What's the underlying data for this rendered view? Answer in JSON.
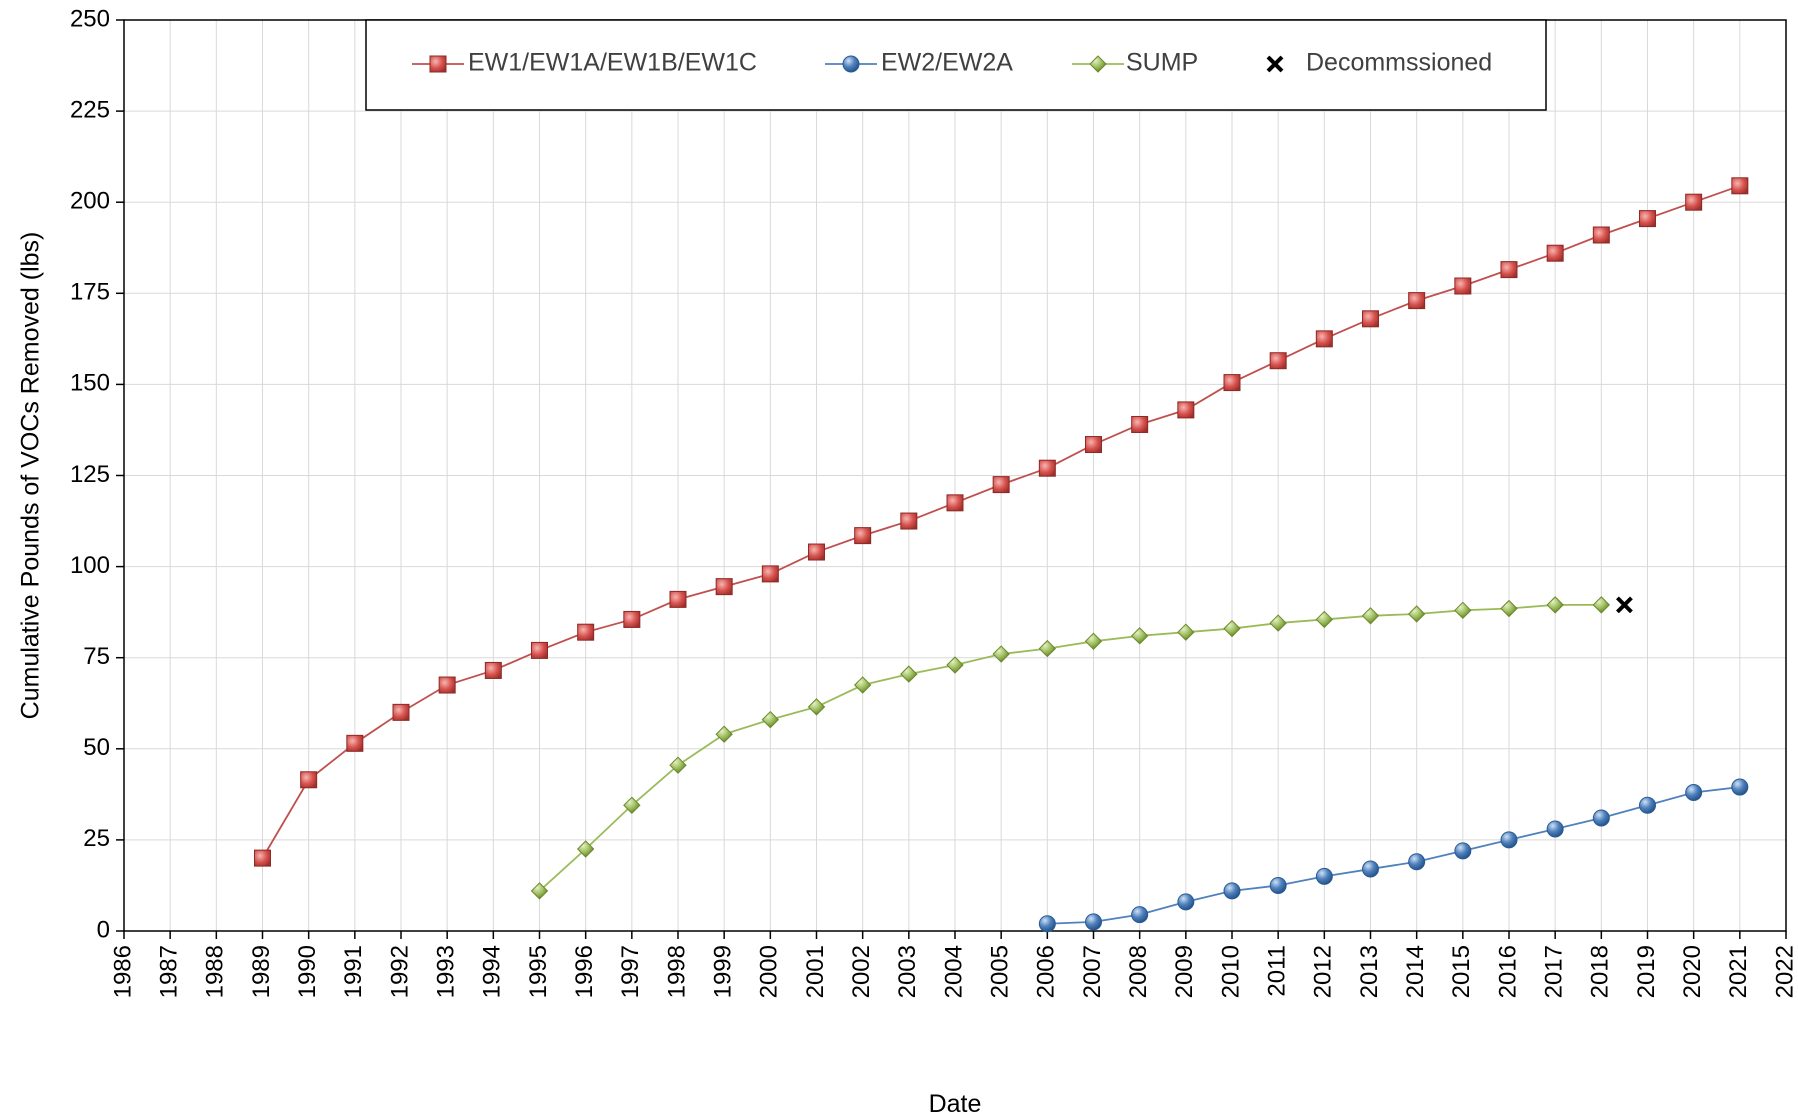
{
  "chart_data": {
    "type": "line",
    "xlabel": "Date",
    "ylabel": "Cumulative Pounds of VOCs Removed (lbs)",
    "xlim": [
      1986,
      2022
    ],
    "ylim": [
      0,
      250
    ],
    "x_ticks": [
      1986,
      1987,
      1988,
      1989,
      1990,
      1991,
      1992,
      1993,
      1994,
      1995,
      1996,
      1997,
      1998,
      1999,
      2000,
      2001,
      2002,
      2003,
      2004,
      2005,
      2006,
      2007,
      2008,
      2009,
      2010,
      2011,
      2012,
      2013,
      2014,
      2015,
      2016,
      2017,
      2018,
      2019,
      2020,
      2021,
      2022
    ],
    "y_ticks": [
      0,
      25,
      50,
      75,
      100,
      125,
      150,
      175,
      200,
      225,
      250
    ],
    "grid": true,
    "legend_position": "top",
    "series": [
      {
        "name": "EW1/EW1A/EW1B/EW1C",
        "marker": "square",
        "color": "#c0504d",
        "fill": "#d9534f",
        "x": [
          1989,
          1990,
          1991,
          1992,
          1993,
          1994,
          1995,
          1996,
          1997,
          1998,
          1999,
          2000,
          2001,
          2002,
          2003,
          2004,
          2005,
          2006,
          2007,
          2008,
          2009,
          2010,
          2011,
          2012,
          2013,
          2014,
          2015,
          2016,
          2017,
          2018,
          2019,
          2020,
          2021
        ],
        "y": [
          20,
          41.5,
          51.5,
          60,
          67.5,
          71.5,
          77,
          82,
          85.5,
          91,
          94.5,
          98,
          104,
          108.5,
          112.5,
          117.5,
          122.5,
          127,
          133.5,
          139,
          143,
          150.5,
          156.5,
          162.5,
          168,
          173,
          177,
          181.5,
          186,
          191,
          195.5,
          200,
          204.5
        ]
      },
      {
        "name": "EW2/EW2A",
        "marker": "circle",
        "color": "#4f81bd",
        "fill": "#4f81bd",
        "x": [
          2006,
          2007,
          2008,
          2009,
          2010,
          2011,
          2012,
          2013,
          2014,
          2015,
          2016,
          2017,
          2018,
          2019,
          2020,
          2021
        ],
        "y": [
          2,
          2.5,
          4.5,
          8,
          11,
          12.5,
          15,
          17,
          19,
          22,
          25,
          28,
          31,
          34.5,
          38,
          39.5
        ]
      },
      {
        "name": "SUMP",
        "marker": "diamond",
        "color": "#9bbb59",
        "fill": "#9bbb59",
        "x": [
          1995,
          1996,
          1997,
          1998,
          1999,
          2000,
          2001,
          2002,
          2003,
          2004,
          2005,
          2006,
          2007,
          2008,
          2009,
          2010,
          2011,
          2012,
          2013,
          2014,
          2015,
          2016,
          2017,
          2018
        ],
        "y": [
          11,
          22.5,
          34.5,
          45.5,
          54,
          58,
          61.5,
          67.5,
          70.5,
          73,
          76,
          77.5,
          79.5,
          81,
          82,
          83,
          84.5,
          85.5,
          86.5,
          87,
          88,
          88.5,
          89.5,
          89.5
        ]
      },
      {
        "name": "Decommssioned",
        "marker": "x",
        "color": "#000000",
        "x": [
          2018.5
        ],
        "y": [
          89.5
        ]
      }
    ]
  }
}
